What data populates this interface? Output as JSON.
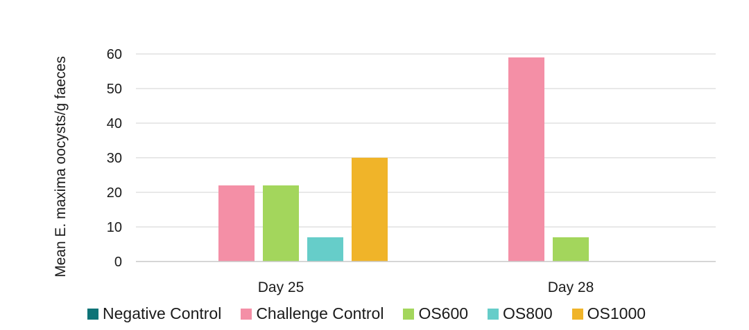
{
  "chart_data": {
    "type": "bar",
    "title": "",
    "xlabel": "",
    "ylabel": "Mean E. maxima oocysts/g faeces",
    "categories": [
      "Day 25",
      "Day 28"
    ],
    "ylim": [
      0,
      60
    ],
    "yticks": [
      0,
      10,
      20,
      30,
      40,
      50,
      60
    ],
    "grid": true,
    "legend_position": "bottom",
    "series": [
      {
        "name": "Negative Control",
        "color": "#0d7377",
        "values": [
          0,
          0
        ]
      },
      {
        "name": "Challenge Control",
        "color": "#f48fa6",
        "values": [
          22,
          59
        ]
      },
      {
        "name": "OS600",
        "color": "#a3d65c",
        "values": [
          22,
          7
        ]
      },
      {
        "name": "OS800",
        "color": "#66cdc9",
        "values": [
          7,
          0
        ]
      },
      {
        "name": "OS1000",
        "color": "#f0b429",
        "values": [
          30,
          0
        ]
      }
    ]
  }
}
